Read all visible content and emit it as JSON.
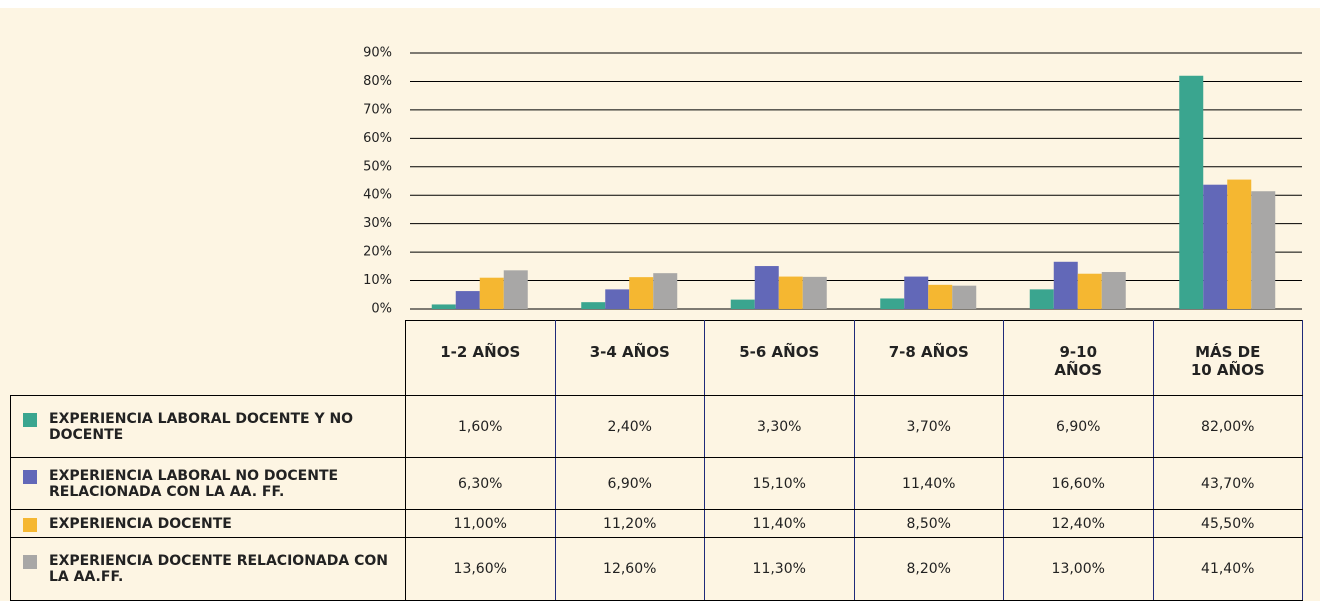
{
  "chart_data": {
    "type": "bar",
    "categories": [
      "1-2 AÑOS",
      "3-4 AÑOS",
      "5-6 AÑOS",
      "7-8 AÑOS",
      "9-10 AÑOS",
      "MÁS DE 10 AÑOS"
    ],
    "series": [
      {
        "name": "EXPERIENCIA LABORAL DOCENTE Y NO DOCENTE",
        "color": "#3aa58f",
        "values": [
          1.6,
          2.4,
          3.3,
          3.7,
          6.9,
          82.0
        ],
        "value_labels": [
          "1,60%",
          "2,40%",
          "3,30%",
          "3,70%",
          "6,90%",
          "82,00%"
        ]
      },
      {
        "name": "EXPERIENCIA LABORAL NO DOCENTE RELACIONADA CON LA AA. FF.",
        "color": "#6268b8",
        "values": [
          6.3,
          6.9,
          15.1,
          11.4,
          16.6,
          43.7
        ],
        "value_labels": [
          "6,30%",
          "6,90%",
          "15,10%",
          "11,40%",
          "16,60%",
          "43,70%"
        ]
      },
      {
        "name": "EXPERIENCIA DOCENTE",
        "color": "#f5b731",
        "values": [
          11.0,
          11.2,
          11.4,
          8.5,
          12.4,
          45.5
        ],
        "value_labels": [
          "11,00%",
          "11,20%",
          "11,40%",
          "8,50%",
          "12,40%",
          "45,50%"
        ]
      },
      {
        "name": "EXPERIENCIA DOCENTE RELACIONADA CON LA AA.FF.",
        "color": "#a8a7a6",
        "values": [
          13.6,
          12.6,
          11.3,
          8.2,
          13.0,
          41.4
        ],
        "value_labels": [
          "13,60%",
          "12,60%",
          "11,30%",
          "8,20%",
          "13,00%",
          "41,40%"
        ]
      }
    ],
    "ylim": [
      0,
      90
    ],
    "yticks": [
      {
        "value": 0,
        "label": "0%"
      },
      {
        "value": 10,
        "label": "10%"
      },
      {
        "value": 20,
        "label": "20%"
      },
      {
        "value": 30,
        "label": "30%"
      },
      {
        "value": 40,
        "label": "40%"
      },
      {
        "value": 50,
        "label": "50%"
      },
      {
        "value": 60,
        "label": "60%"
      },
      {
        "value": 70,
        "label": "70%"
      },
      {
        "value": 80,
        "label": "80%"
      },
      {
        "value": 90,
        "label": "90%"
      }
    ],
    "grid": true
  }
}
